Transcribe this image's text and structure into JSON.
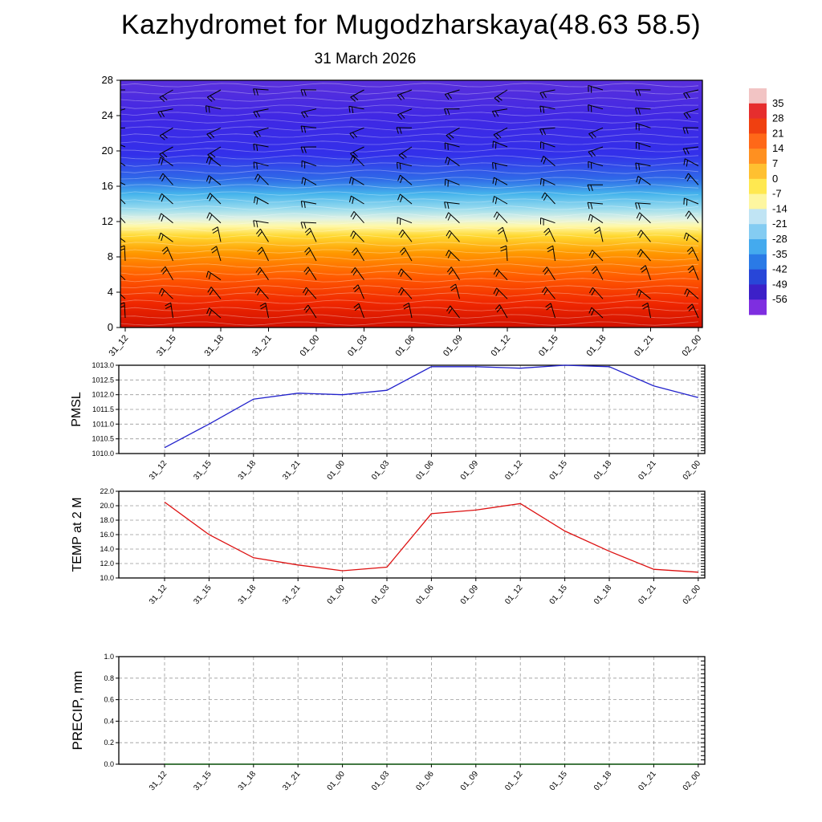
{
  "title": "Kazhydromet for Mugodzharskaya(48.63 58.5)",
  "subtitle": "31 March 2026",
  "time_labels": [
    "31_12",
    "31_15",
    "31_18",
    "31_21",
    "01_00",
    "01_03",
    "01_06",
    "01_09",
    "01_12",
    "01_15",
    "01_18",
    "01_21",
    "02_00"
  ],
  "chart_data": [
    {
      "type": "heatmap",
      "name": "temperature-height-section",
      "title": "31 March 2026",
      "x": "time_labels",
      "y_ticks": [
        0,
        4,
        8,
        12,
        16,
        20,
        24,
        28
      ],
      "ylim": [
        0,
        28
      ],
      "grid": "off",
      "overlay": "wind-barbs",
      "description": "Time-height section: shaded temperature with white contour lines and black wind barbs; warm red near surface, yellow band near 8-12, blue to purple aloft",
      "wind_barbs": {
        "columns": 13,
        "rows": 13,
        "color": "#000000"
      },
      "fill_gradient": [
        {
          "pos": 0.0,
          "color": "#5a30dc"
        },
        {
          "pos": 0.15,
          "color": "#4028e4"
        },
        {
          "pos": 0.3,
          "color": "#3330ea"
        },
        {
          "pos": 0.4,
          "color": "#2f6ae8"
        },
        {
          "pos": 0.46,
          "color": "#45b4ec"
        },
        {
          "pos": 0.52,
          "color": "#9adcee"
        },
        {
          "pos": 0.56,
          "color": "#e0f2e4"
        },
        {
          "pos": 0.59,
          "color": "#fff8a8"
        },
        {
          "pos": 0.63,
          "color": "#ffd830"
        },
        {
          "pos": 0.7,
          "color": "#ff9800"
        },
        {
          "pos": 0.8,
          "color": "#ff5800"
        },
        {
          "pos": 0.9,
          "color": "#f02800"
        },
        {
          "pos": 1.0,
          "color": "#d01000"
        }
      ],
      "colorbar": {
        "position": "right",
        "ticks": [
          35,
          28,
          21,
          14,
          7,
          0,
          -7,
          -14,
          -21,
          -28,
          -35,
          -42,
          -49,
          -56
        ],
        "colors": [
          "#f2c4c4",
          "#e62e2e",
          "#f04010",
          "#ff6818",
          "#ff9020",
          "#ffc030",
          "#ffe850",
          "#fdf6a0",
          "#c0e4f4",
          "#84ccf2",
          "#44aaee",
          "#2a7ae6",
          "#2846d8",
          "#3c20c8",
          "#7e2ee0"
        ]
      }
    },
    {
      "type": "line",
      "name": "pmsl",
      "ylabel": "PMSL",
      "x": "time_labels",
      "values": [
        1010.2,
        1011.0,
        1011.85,
        1012.05,
        1012.0,
        1012.15,
        1012.95,
        1012.95,
        1012.9,
        1013.0,
        1012.95,
        1012.3,
        1011.9
      ],
      "ylim": [
        1010.0,
        1013.0
      ],
      "ytick_step": 0.5,
      "color": "#2222cc",
      "grid": "dashed"
    },
    {
      "type": "line",
      "name": "temp_2m",
      "ylabel": "TEMP at 2 M",
      "x": "time_labels",
      "values": [
        20.5,
        16.0,
        12.8,
        11.8,
        11.0,
        11.5,
        18.9,
        19.4,
        20.3,
        16.5,
        13.7,
        11.2,
        10.8
      ],
      "ylim": [
        10.0,
        22.0
      ],
      "ytick_step": 2.0,
      "color": "#dd1111",
      "grid": "dashed"
    },
    {
      "type": "line",
      "name": "precip",
      "ylabel": "PRECIP, mm",
      "x": "time_labels",
      "values": [
        0,
        0,
        0,
        0,
        0,
        0,
        0,
        0,
        0,
        0,
        0,
        0,
        0
      ],
      "ylim": [
        0.0,
        1.0
      ],
      "ytick_step": 0.2,
      "color": "#005500",
      "grid": "dashed"
    }
  ]
}
